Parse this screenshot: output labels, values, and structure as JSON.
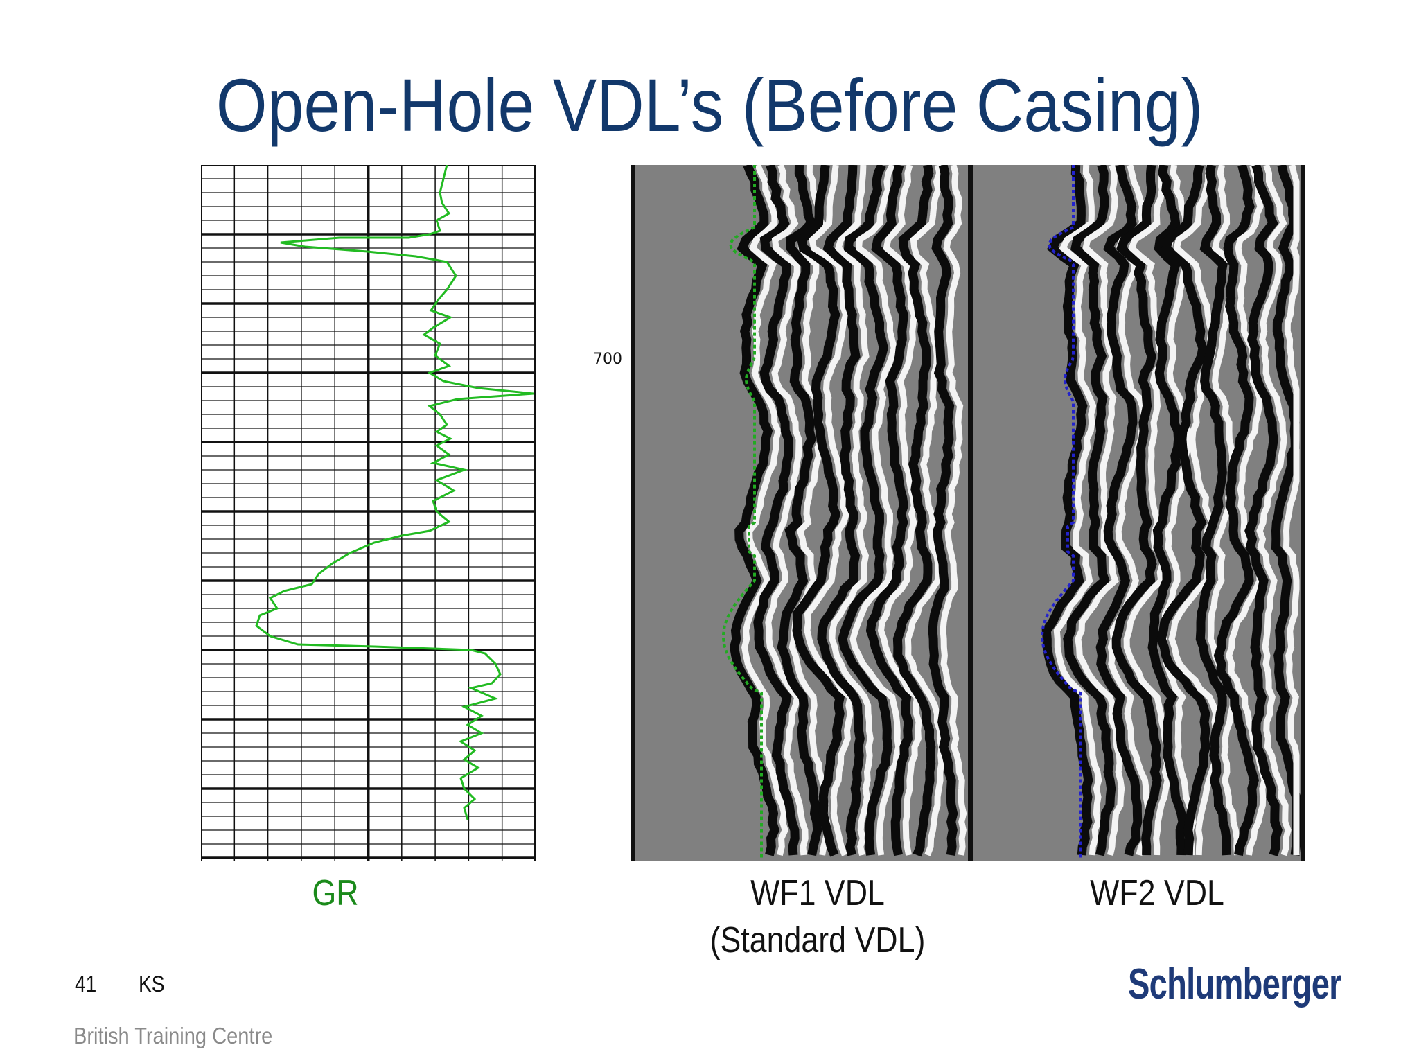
{
  "slide": {
    "title": "Open-Hole VDL’s (Before Casing)",
    "depth_label": "700",
    "captions": {
      "gr": "GR",
      "wf1_line1": "WF1 VDL",
      "wf1_line2": "(Standard VDL)",
      "wf2": "WF2 VDL"
    },
    "footer": {
      "page_number": "41",
      "initials": "KS",
      "centre": "British Training Centre"
    },
    "logo_text": "Schlumberger"
  },
  "colors": {
    "title": "#12386b",
    "gr_curve": "#22bb22",
    "gr_label": "#1b8a1b",
    "wf1_first_arrival": "#22aa22",
    "wf2_first_arrival": "#2222cc",
    "logo": "#1e3a78",
    "vdl_background": "#808080"
  }
}
